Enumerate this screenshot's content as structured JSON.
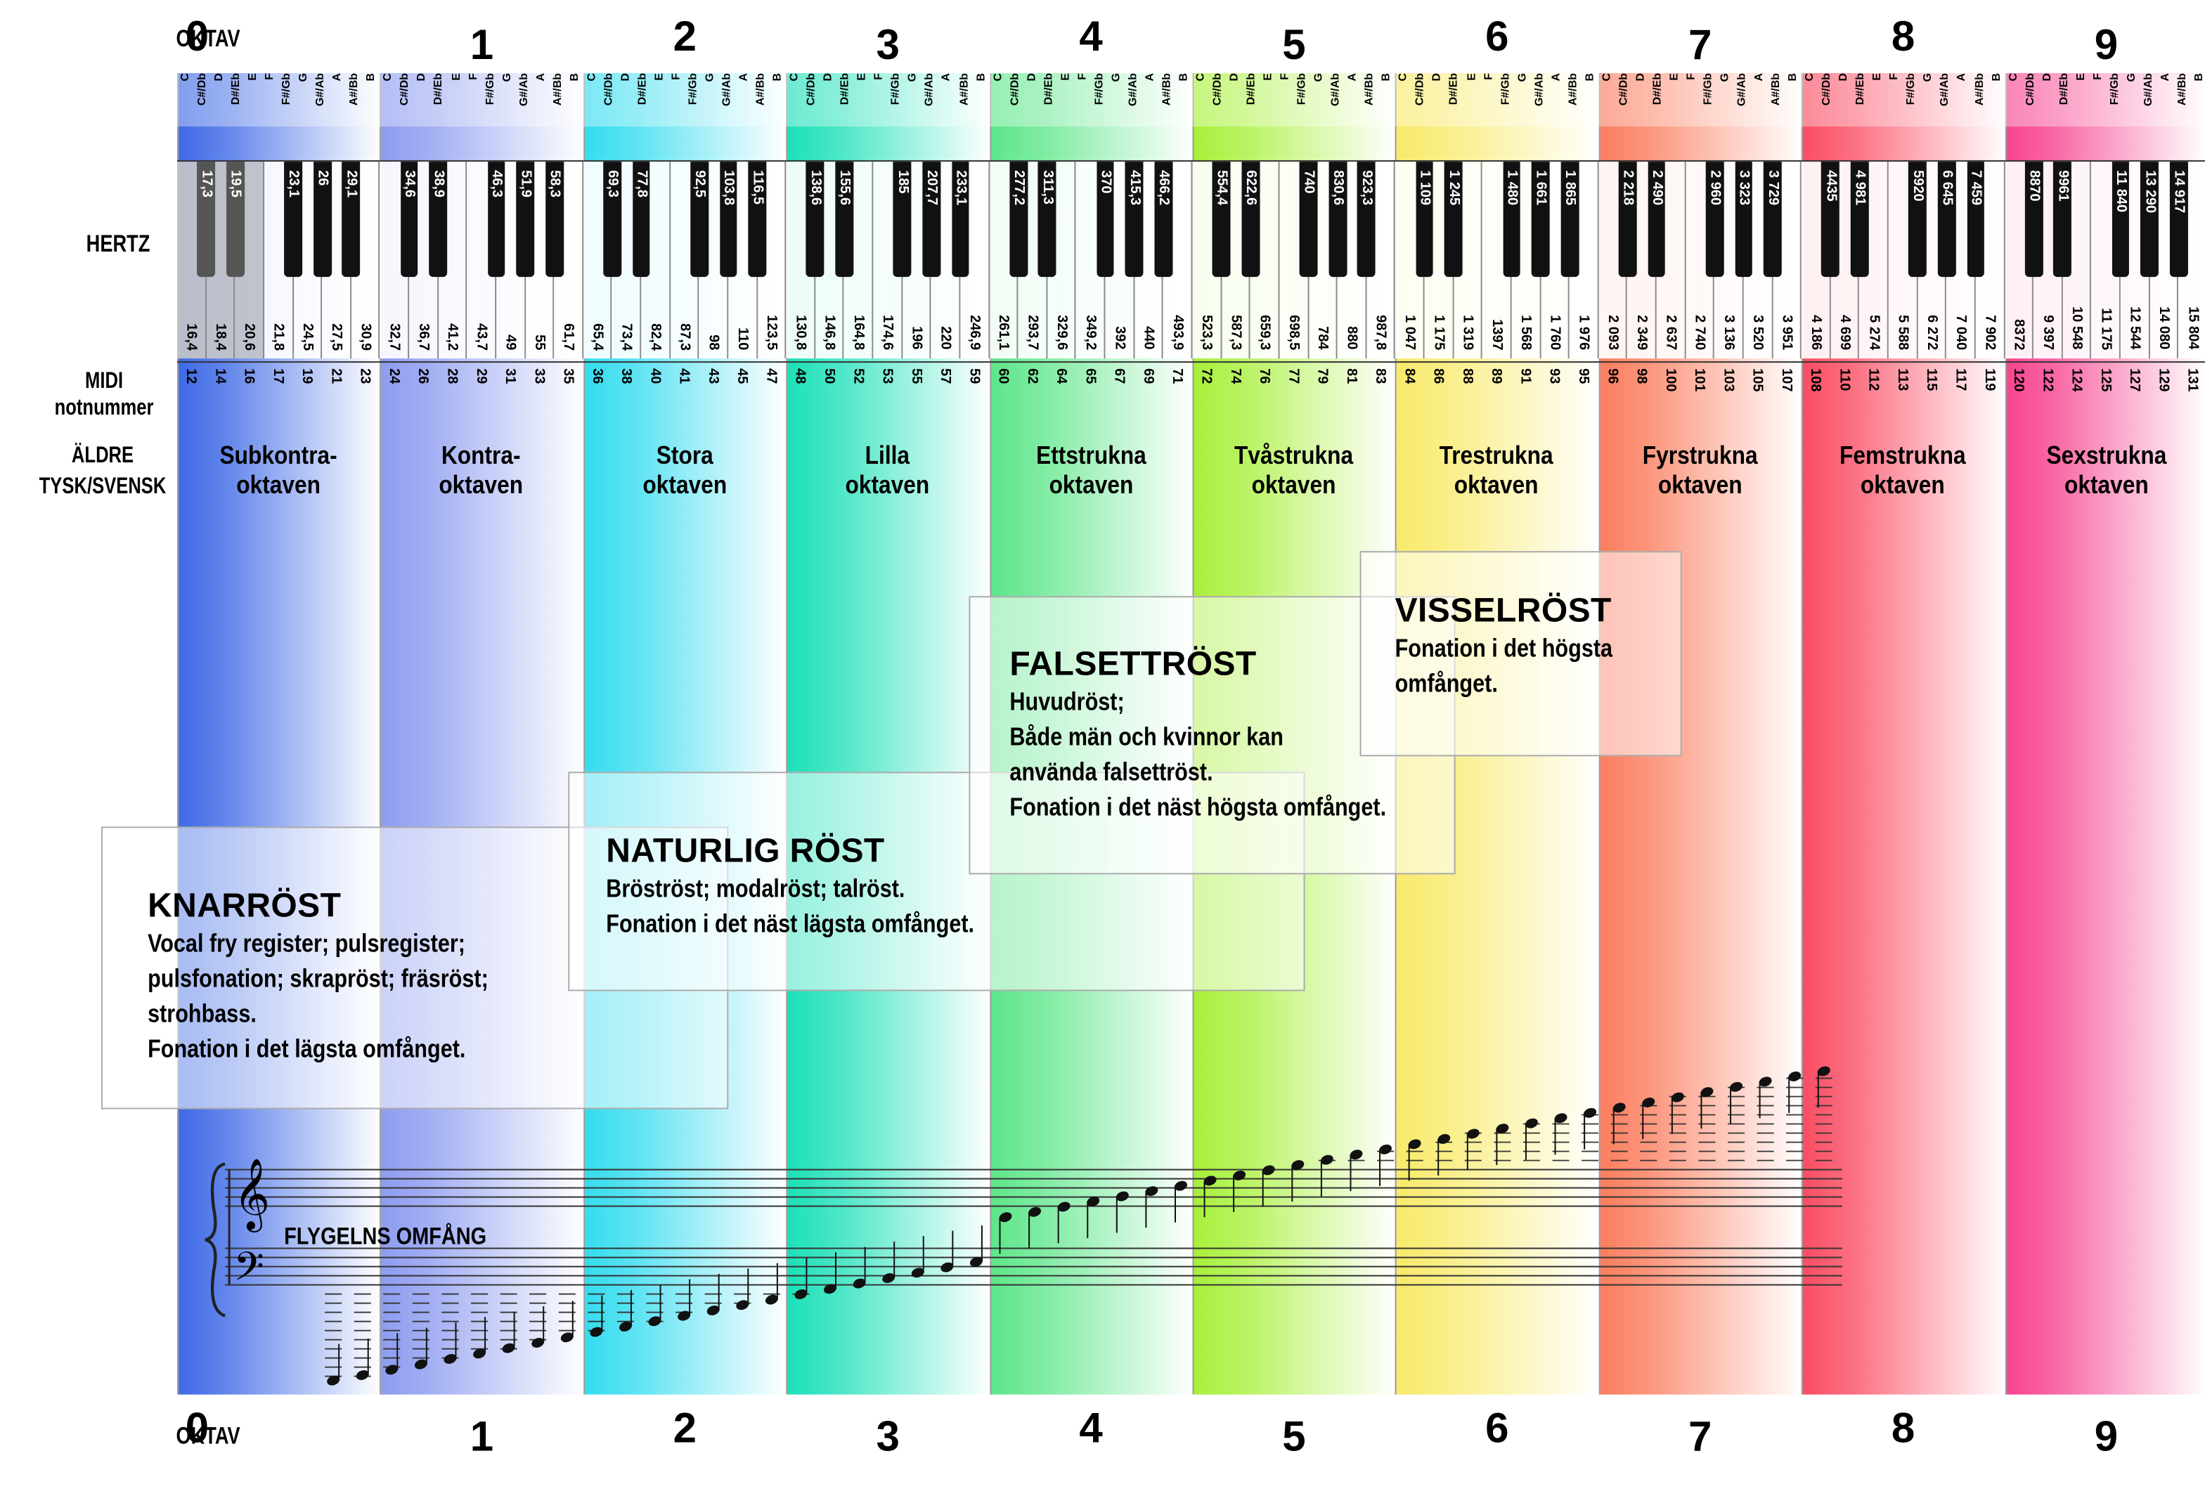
{
  "labels": {
    "octave": "OKTAV",
    "hertz": "HERTZ",
    "midi_line1": "MIDI",
    "midi_line2": "notnummer",
    "older_line1": "ÄLDRE",
    "older_line2": "TYSK/SVENSK",
    "piano_range": "FLYGELNS OMFÅNG"
  },
  "note_names": [
    "C",
    "C#/Db",
    "D",
    "D#/Eb",
    "E",
    "F",
    "F#/Gb",
    "G",
    "G#/Ab",
    "A",
    "A#/Bb",
    "B"
  ],
  "octaves": [
    {
      "number": "0",
      "name": "Subkontra-\noktaven",
      "color": "#3f6ae6",
      "white_hz": [
        "16,4",
        "18,4",
        "20,6",
        "21,8",
        "24,5",
        "27,5",
        "30,9"
      ],
      "black_hz": [
        "17,3",
        "19,5",
        "23,1",
        "26",
        "29,1"
      ],
      "midi": [
        "12",
        "14",
        "16",
        "17",
        "19",
        "21",
        "23"
      ]
    },
    {
      "number": "1",
      "name": "Kontra-\noktaven",
      "color": "#8d9cf0",
      "white_hz": [
        "32,7",
        "36,7",
        "41,2",
        "43,7",
        "49",
        "55",
        "61,7"
      ],
      "black_hz": [
        "34,6",
        "38,9",
        "46,3",
        "51,9",
        "58,3"
      ],
      "midi": [
        "24",
        "26",
        "28",
        "29",
        "31",
        "33",
        "35"
      ]
    },
    {
      "number": "2",
      "name": "Stora\noktaven",
      "color": "#35dcef",
      "white_hz": [
        "65,4",
        "73,4",
        "82,4",
        "87,3",
        "98",
        "110",
        "123,5"
      ],
      "black_hz": [
        "69,3",
        "77,8",
        "92,5",
        "103,8",
        "116,5"
      ],
      "midi": [
        "36",
        "38",
        "40",
        "41",
        "43",
        "45",
        "47"
      ]
    },
    {
      "number": "3",
      "name": "Lilla\noktaven",
      "color": "#1de0b8",
      "white_hz": [
        "130,8",
        "146,8",
        "164,8",
        "174,6",
        "196",
        "220",
        "246,9"
      ],
      "black_hz": [
        "138,6",
        "155,6",
        "185",
        "207,7",
        "233,1"
      ],
      "midi": [
        "48",
        "50",
        "52",
        "53",
        "55",
        "57",
        "59"
      ]
    },
    {
      "number": "4",
      "name": "Ettstrukna\noktaven",
      "color": "#5ee68a",
      "white_hz": [
        "261,1",
        "293,7",
        "329,6",
        "349,2",
        "392",
        "440",
        "493,9"
      ],
      "black_hz": [
        "277,2",
        "311,3",
        "370",
        "415,3",
        "466,2"
      ],
      "midi": [
        "60",
        "62",
        "64",
        "65",
        "67",
        "69",
        "71"
      ]
    },
    {
      "number": "5",
      "name": "Tvåstrukna\noktaven",
      "color": "#a8f03a",
      "white_hz": [
        "523,3",
        "587,3",
        "659,3",
        "698,5",
        "784",
        "880",
        "987,8"
      ],
      "black_hz": [
        "554,4",
        "622,6",
        "740",
        "830,6",
        "923,3"
      ],
      "midi": [
        "72",
        "74",
        "76",
        "77",
        "79",
        "81",
        "83"
      ]
    },
    {
      "number": "6",
      "name": "Trestrukna\noktaven",
      "color": "#f8ea6a",
      "white_hz": [
        "1 047",
        "1 175",
        "1 319",
        "1397",
        "1 568",
        "1 760",
        "1 976"
      ],
      "black_hz": [
        "1 109",
        "1 245",
        "1 480",
        "1 661",
        "1 865"
      ],
      "midi": [
        "84",
        "86",
        "88",
        "89",
        "91",
        "93",
        "95"
      ]
    },
    {
      "number": "7",
      "name": "Fyrstrukna\noktaven",
      "color": "#fb7d5e",
      "white_hz": [
        "2 093",
        "2 349",
        "2 637",
        "2 740",
        "3 136",
        "3 520",
        "3 951"
      ],
      "black_hz": [
        "2 218",
        "2 490",
        "2 960",
        "3 323",
        "3 729"
      ],
      "midi": [
        "96",
        "98",
        "100",
        "101",
        "103",
        "105",
        "107"
      ]
    },
    {
      "number": "8",
      "name": "Femstrukna\noktaven",
      "color": "#fa4d63",
      "white_hz": [
        "4 186",
        "4 699",
        "5 274",
        "5 588",
        "6 272",
        "7 040",
        "7 902"
      ],
      "black_hz": [
        "4435",
        "4 981",
        "5920",
        "6 645",
        "7 459"
      ],
      "midi": [
        "108",
        "110",
        "112",
        "113",
        "115",
        "117",
        "119"
      ]
    },
    {
      "number": "9",
      "name": "Sexstrukna\noktaven",
      "color": "#f74490",
      "white_hz": [
        "8372",
        "9 397",
        "10 548",
        "11 175",
        "12 544",
        "14 080",
        "15 804"
      ],
      "black_hz": [
        "8870",
        "9961",
        "11 840",
        "13 290",
        "14 917"
      ],
      "midi": [
        "120",
        "122",
        "124",
        "125",
        "127",
        "129",
        "131"
      ]
    }
  ],
  "registers": [
    {
      "id": "knarrost",
      "title": "KNARRÖST",
      "lines": [
        "Vocal fry register; pulsregister;",
        "pulsfonation; skrapröst; fräsröst;",
        "strohbass.",
        "Fonation i det lägsta omfånget."
      ]
    },
    {
      "id": "naturlig",
      "title": "NATURLIG RÖST",
      "lines": [
        "Bröströst; modalröst; talröst.",
        "Fonation i det näst lägsta omfånget."
      ]
    },
    {
      "id": "falsett",
      "title": "FALSETTRÖST",
      "lines": [
        "Huvudröst;",
        "Både män och kvinnor kan",
        "använda falsettröst.",
        "Fonation i det näst högsta omfånget."
      ]
    },
    {
      "id": "vissel",
      "title": "VISSELRÖST",
      "lines": [
        "Fonation i det högsta",
        "omfånget."
      ]
    }
  ]
}
